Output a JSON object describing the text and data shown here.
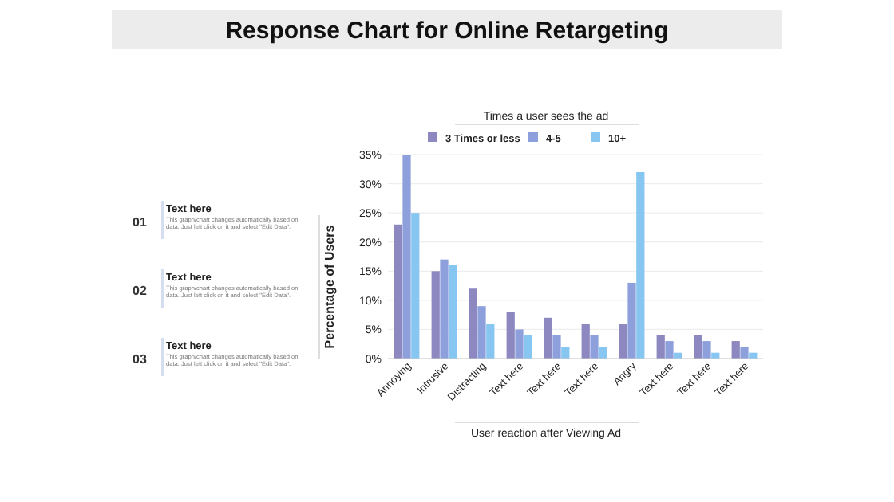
{
  "chart_data": {
    "type": "bar",
    "title": "Response Chart for Online Retargeting",
    "xlabel": "User reaction after Viewing Ad",
    "ylabel": "Percentage of Users",
    "legend_title": "Times a user sees the ad",
    "legend": "top",
    "categories": [
      "Annoying",
      "Intrusive",
      "Distracting",
      "Text here",
      "Text here",
      "Text here",
      "Angry",
      "Text here",
      "Text here",
      "Text here"
    ],
    "series": [
      {
        "name": "3 Times or less",
        "color": "#8e88c0",
        "values": [
          23,
          15,
          12,
          8,
          7,
          6,
          6,
          4,
          4,
          3
        ]
      },
      {
        "name": "4-5",
        "color": "#8ea0dc",
        "values": [
          35,
          17,
          9,
          5,
          4,
          4,
          13,
          3,
          3,
          2
        ]
      },
      {
        "name": "10+",
        "color": "#86c6f0",
        "values": [
          25,
          16,
          6,
          4,
          2,
          2,
          32,
          1,
          1,
          1
        ]
      }
    ],
    "ylim": [
      0,
      35
    ],
    "yticks": [
      {
        "value": 0,
        "label": "0%"
      },
      {
        "value": 5,
        "label": "5%"
      },
      {
        "value": 10,
        "label": "10%"
      },
      {
        "value": 15,
        "label": "15%"
      },
      {
        "value": 20,
        "label": "20%"
      },
      {
        "value": 25,
        "label": "25%"
      },
      {
        "value": 30,
        "label": "30%"
      },
      {
        "value": 35,
        "label": "35%"
      }
    ],
    "grid": "y",
    "annotations": [
      "01",
      "Text here",
      "This graph/chart changes automatically based on data. Just left click on it and select \"Edit Data\".",
      "02",
      "Text here",
      "This graph/chart changes automatically based on data. Just left click on it and select \"Edit Data\".",
      "03",
      "Text here",
      "This graph/chart changes automatically based on data. Just left click on it and select \"Edit Data\"."
    ]
  }
}
